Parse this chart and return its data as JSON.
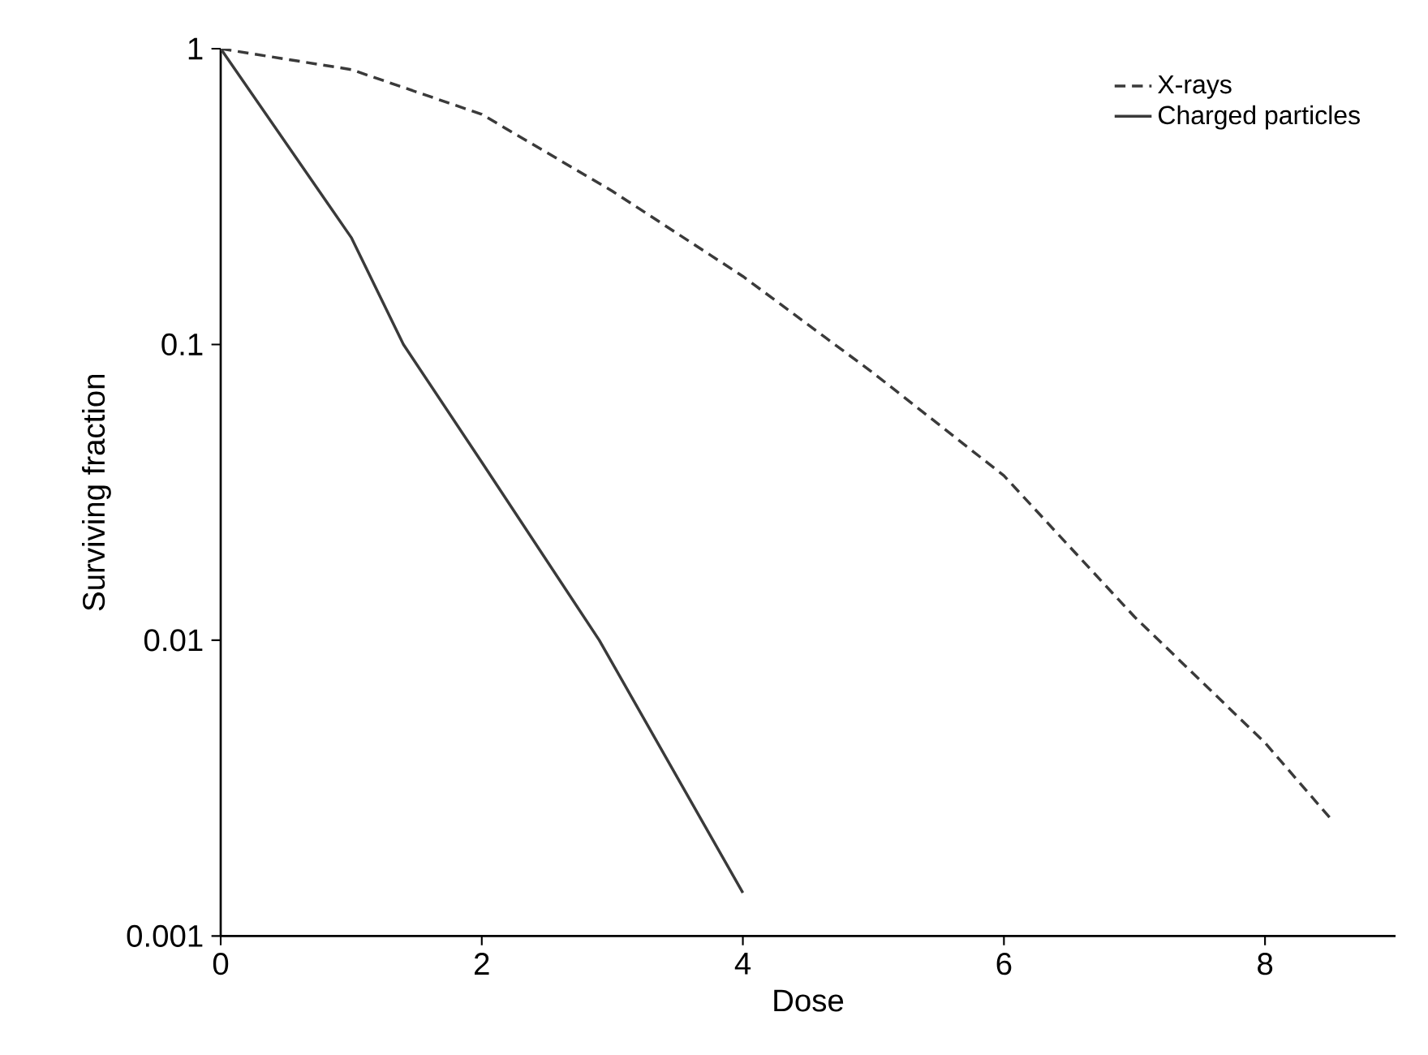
{
  "chart_data": {
    "type": "line",
    "xlabel": "Dose",
    "ylabel": "Surviving fraction",
    "log": "y",
    "xlim": [
      0,
      9
    ],
    "ylim": [
      0.001,
      1
    ],
    "xticks": [
      0,
      2,
      4,
      6,
      8
    ],
    "yticks": [
      0.001,
      0.01,
      0.1,
      1
    ],
    "grid": false,
    "legend": "top right",
    "marker": "none",
    "series": [
      {
        "name": "X-rays",
        "color": "#3a3a3a",
        "line_style": "dashed",
        "x": [
          0,
          1,
          2,
          3,
          4,
          5,
          6,
          7,
          8,
          8.5
        ],
        "values": [
          1,
          0.85,
          0.6,
          0.33,
          0.17,
          0.08,
          0.036,
          0.012,
          0.0045,
          0.0025
        ]
      },
      {
        "name": "Charged particles",
        "color": "#3a3a3a",
        "line_style": "solid",
        "x": [
          0,
          1,
          1.4,
          2,
          2.9,
          4
        ],
        "values": [
          1,
          0.23,
          0.1,
          0.04,
          0.01,
          0.0014
        ]
      }
    ]
  }
}
